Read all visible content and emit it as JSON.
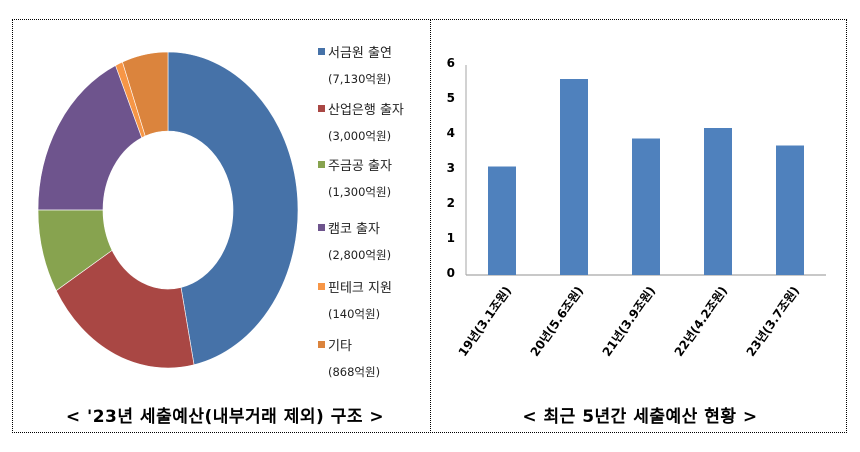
{
  "left_panel": {
    "caption": "<  '23년  세출예산(내부거래  제외)  구조  >"
  },
  "right_panel": {
    "caption": "<  최근  5년간  세출예산  현황  >"
  },
  "chart_data": [
    {
      "type": "pie",
      "variant": "donut",
      "title": "'23년 세출예산(내부거래 제외) 구조",
      "unit": "억원",
      "categories": [
        "서금원 출연",
        "산업은행 출자",
        "주금공 출자",
        "캠코 출자",
        "핀테크 지원",
        "기타"
      ],
      "values": [
        7130,
        3000,
        1300,
        2800,
        140,
        868
      ],
      "value_labels": [
        "(7,130억원)",
        "(3,000억원)",
        "(1,300억원)",
        "(2,800억원)",
        "(140억원)",
        "(868억원)"
      ],
      "colors": [
        "#4672a8",
        "#a94744",
        "#87a34f",
        "#6e548d",
        "#f79646",
        "#db843d"
      ],
      "legend_position": "right",
      "start_angle_deg": 0,
      "direction": "clockwise"
    },
    {
      "type": "bar",
      "title": "최근 5년간 세출예산 현황",
      "unit": "조원",
      "categories": [
        "19년(3.1조원)",
        "20년(5.6조원)",
        "21년(3.9조원)",
        "22년(4.2조원)",
        "23년(3.7조원)"
      ],
      "values": [
        3.1,
        5.6,
        3.9,
        4.2,
        3.7
      ],
      "ylim": [
        0,
        6
      ],
      "yticks": [
        "0",
        "1",
        "2",
        "3",
        "4",
        "5",
        "6"
      ],
      "xlabel": "",
      "ylabel": "",
      "grid": false,
      "legend": false,
      "bar_color": "#4f81bd",
      "axis_color": "#a6a6a6"
    }
  ]
}
